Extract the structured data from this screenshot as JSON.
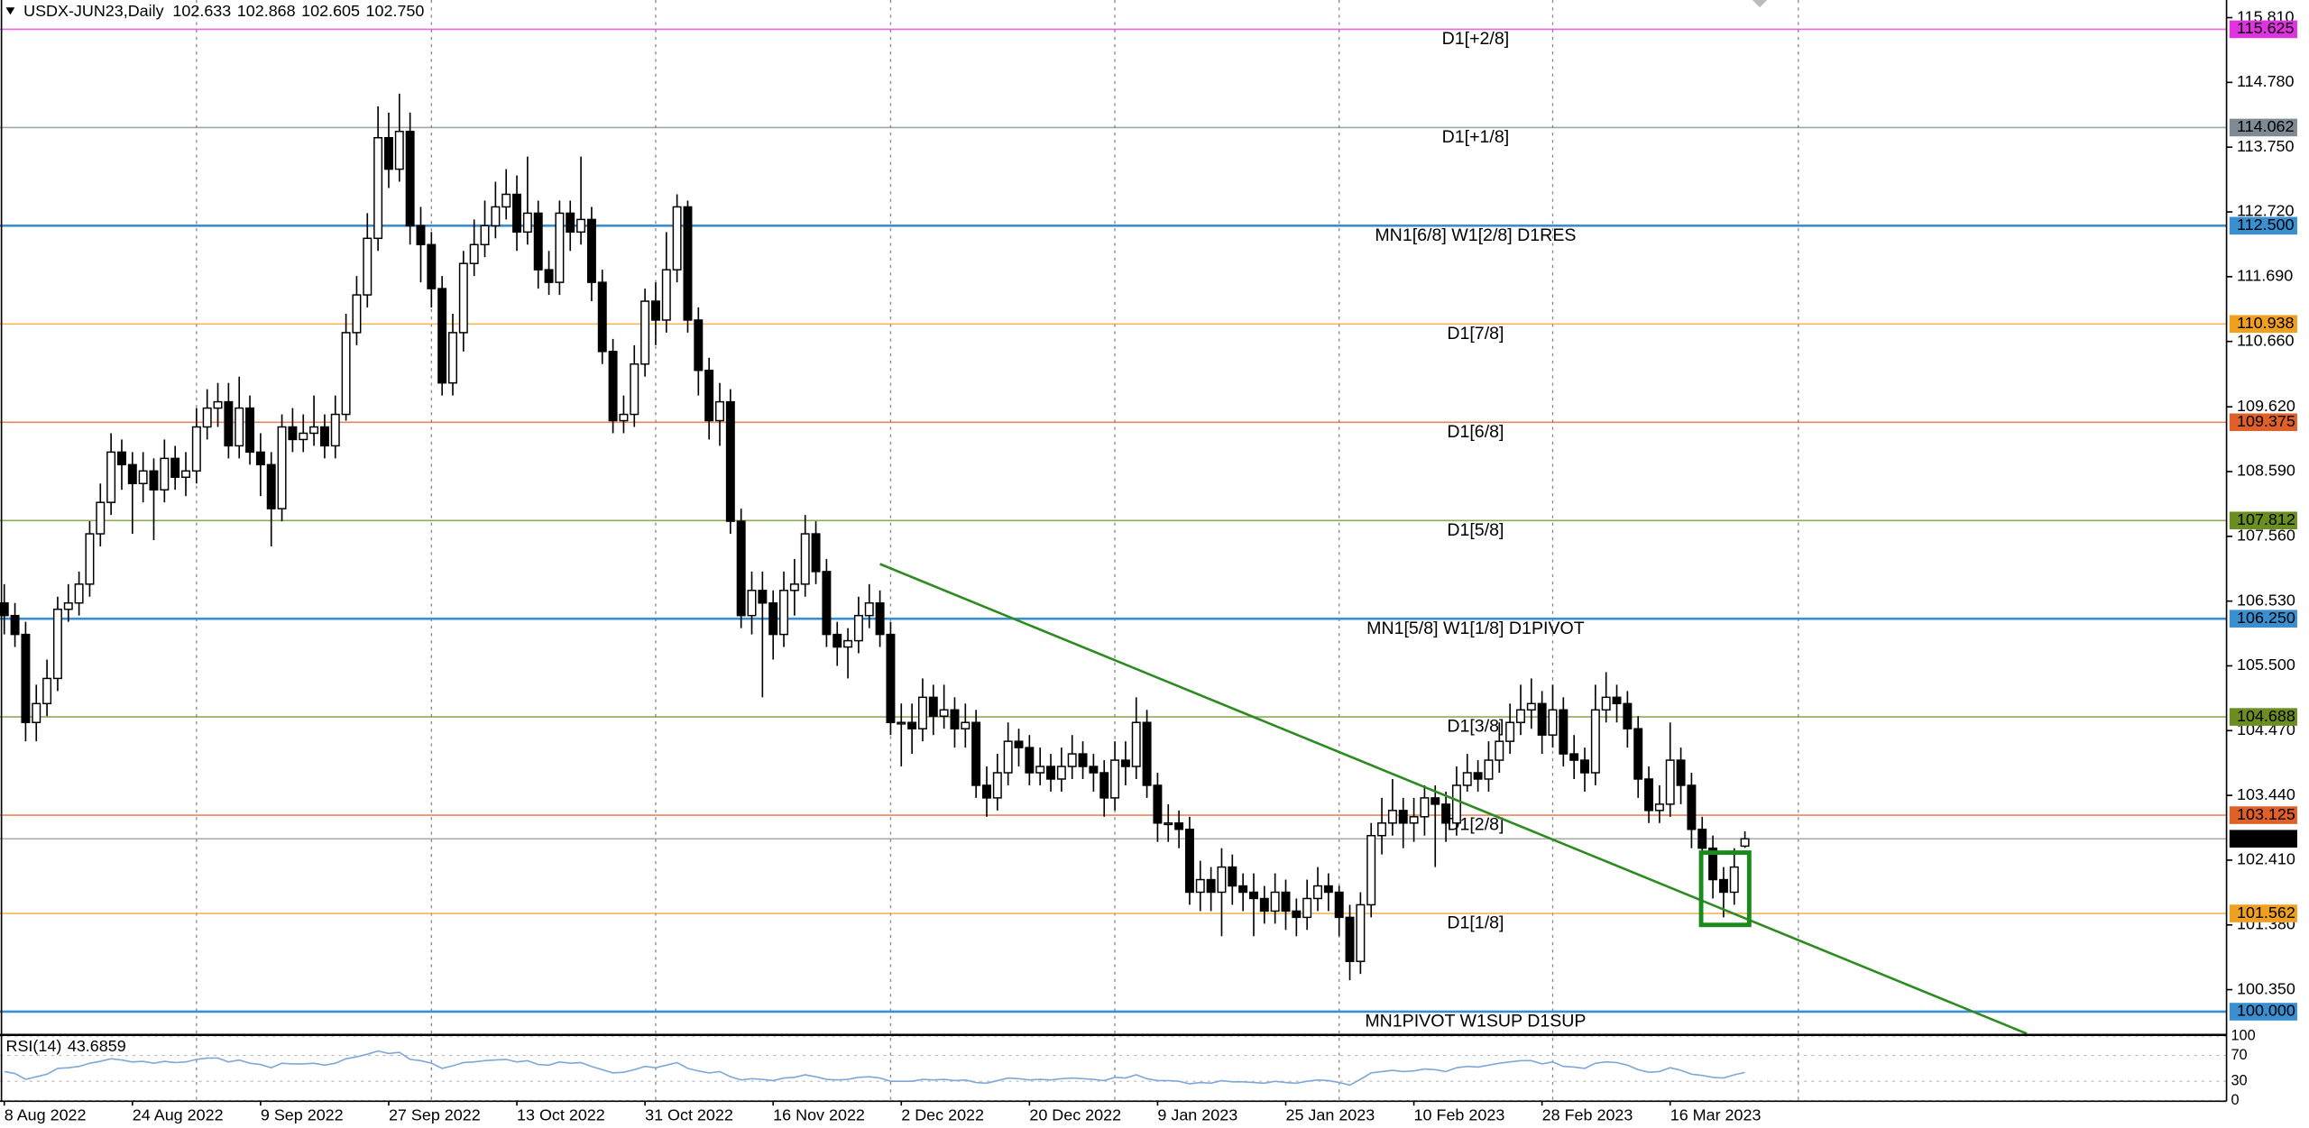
{
  "chart_data": [
    {
      "type": "candlestick",
      "symbol": "USDX-JUN23,Daily",
      "last_bar_labels": {
        "open": "102.633",
        "high": "102.868",
        "low": "102.605",
        "close": "102.750"
      },
      "bull_color": "#ffffff",
      "bear_color": "#000000",
      "open": [
        106.5,
        106.3,
        106.0,
        104.6,
        104.9,
        105.3,
        106.4,
        106.5,
        106.8,
        107.6,
        108.1,
        108.9,
        108.7,
        108.4,
        108.6,
        108.3,
        108.8,
        108.5,
        108.6,
        109.3,
        109.6,
        109.7,
        109.0,
        109.6,
        108.9,
        108.7,
        108.0,
        109.3,
        109.1,
        109.2,
        109.3,
        109.0,
        109.5,
        110.8,
        111.4,
        112.3,
        113.9,
        113.4,
        114.0,
        112.5,
        112.2,
        111.5,
        110.0,
        110.8,
        111.9,
        112.2,
        112.5,
        112.8,
        113.0,
        112.4,
        112.7,
        111.8,
        111.6,
        112.7,
        112.4,
        112.6,
        111.6,
        110.5,
        109.4,
        109.5,
        110.3,
        111.3,
        111.0,
        111.8,
        112.8,
        111.0,
        110.2,
        109.4,
        109.7,
        107.8,
        106.3,
        106.7,
        106.5,
        106.0,
        106.7,
        106.8,
        107.6,
        107.0,
        106.0,
        105.8,
        105.9,
        106.3,
        106.5,
        106.0,
        104.6,
        104.6,
        104.5,
        105.0,
        104.7,
        104.8,
        104.5,
        104.6,
        103.6,
        103.4,
        103.8,
        104.3,
        104.2,
        103.8,
        103.9,
        103.7,
        103.9,
        104.1,
        103.9,
        103.8,
        103.4,
        104.0,
        103.9,
        104.6,
        103.6,
        103.0,
        103.0,
        102.9,
        101.9,
        102.1,
        101.9,
        102.3,
        102.0,
        101.9,
        101.8,
        101.6,
        101.9,
        101.6,
        101.5,
        101.8,
        102.0,
        101.9,
        101.5,
        100.8,
        101.7,
        102.8,
        103.0,
        103.2,
        103.0,
        103.1,
        103.4,
        103.3,
        103.0,
        103.6,
        103.8,
        103.7,
        104.0,
        104.3,
        104.6,
        104.8,
        104.9,
        104.4,
        104.8,
        104.1,
        104.0,
        103.8,
        104.8,
        105.0,
        104.9,
        104.5,
        103.7,
        103.2,
        103.3,
        104.0,
        103.6,
        102.9,
        102.6,
        102.1,
        101.9,
        102.633
      ],
      "high": [
        106.8,
        106.5,
        106.2,
        105.2,
        105.6,
        106.6,
        106.8,
        107.0,
        107.8,
        108.4,
        109.2,
        109.1,
        108.9,
        108.9,
        108.8,
        109.1,
        109.0,
        108.9,
        109.6,
        109.9,
        110.0,
        110.0,
        110.1,
        109.8,
        109.2,
        108.9,
        109.5,
        109.6,
        109.5,
        109.8,
        109.5,
        109.8,
        111.1,
        111.7,
        112.7,
        114.4,
        114.3,
        114.6,
        114.3,
        112.8,
        112.4,
        111.7,
        111.1,
        112.1,
        112.6,
        112.9,
        113.2,
        113.4,
        113.3,
        113.6,
        112.9,
        112.1,
        112.9,
        112.9,
        113.6,
        112.8,
        111.8,
        110.7,
        109.8,
        110.6,
        111.5,
        111.6,
        112.4,
        113.0,
        112.9,
        111.2,
        110.4,
        110.0,
        109.9,
        108.0,
        107.0,
        107.0,
        106.7,
        107.0,
        107.2,
        107.9,
        107.8,
        107.2,
        106.2,
        106.1,
        106.6,
        106.8,
        106.7,
        106.2,
        104.9,
        104.9,
        105.3,
        105.2,
        105.2,
        105.0,
        104.9,
        104.8,
        103.9,
        104.1,
        104.6,
        104.5,
        104.4,
        104.2,
        104.1,
        104.2,
        104.4,
        104.3,
        104.1,
        104.0,
        104.3,
        104.3,
        105.0,
        104.8,
        103.8,
        103.3,
        103.2,
        103.1,
        102.4,
        102.3,
        102.6,
        102.5,
        102.2,
        102.2,
        102.0,
        102.2,
        102.1,
        101.8,
        102.1,
        102.3,
        102.2,
        102.0,
        101.7,
        101.9,
        103.0,
        103.4,
        103.7,
        103.4,
        103.4,
        103.6,
        103.6,
        103.5,
        103.9,
        104.1,
        104.0,
        104.3,
        104.6,
        104.9,
        105.2,
        105.3,
        105.1,
        105.2,
        105.0,
        104.4,
        104.2,
        105.2,
        105.4,
        105.2,
        105.1,
        104.7,
        103.9,
        103.6,
        104.6,
        104.2,
        103.8,
        103.1,
        102.8,
        102.3,
        102.6,
        102.868
      ],
      "low": [
        106.0,
        105.8,
        104.3,
        104.3,
        104.7,
        105.1,
        106.2,
        106.3,
        106.6,
        107.4,
        107.9,
        108.3,
        107.6,
        108.1,
        107.5,
        108.1,
        108.3,
        108.2,
        108.4,
        109.1,
        109.3,
        108.8,
        108.8,
        108.7,
        108.2,
        107.4,
        107.8,
        108.9,
        108.9,
        109.0,
        108.8,
        108.8,
        109.4,
        110.6,
        111.2,
        112.1,
        113.1,
        113.2,
        112.2,
        111.6,
        111.2,
        109.8,
        109.8,
        110.5,
        111.7,
        112.0,
        112.3,
        112.6,
        112.1,
        112.2,
        111.5,
        111.4,
        111.4,
        112.1,
        112.2,
        111.3,
        110.3,
        109.2,
        109.2,
        109.3,
        110.1,
        110.6,
        110.8,
        111.6,
        110.8,
        109.8,
        109.1,
        109.0,
        107.6,
        106.1,
        106.0,
        105.0,
        105.6,
        105.8,
        106.3,
        106.6,
        106.8,
        105.8,
        105.5,
        105.3,
        105.7,
        106.1,
        105.8,
        104.4,
        103.9,
        104.1,
        104.3,
        104.4,
        104.5,
        104.2,
        104.2,
        103.4,
        103.1,
        103.2,
        103.6,
        103.9,
        103.6,
        103.6,
        103.5,
        103.5,
        103.7,
        103.7,
        103.5,
        103.1,
        103.2,
        103.6,
        103.7,
        103.4,
        102.7,
        102.7,
        102.6,
        101.7,
        101.6,
        101.6,
        101.2,
        101.7,
        101.6,
        101.2,
        101.4,
        101.4,
        101.3,
        101.2,
        101.3,
        101.6,
        101.6,
        101.2,
        100.5,
        100.6,
        101.5,
        102.5,
        102.8,
        102.6,
        102.7,
        102.8,
        102.3,
        102.7,
        102.8,
        103.5,
        103.5,
        103.5,
        103.8,
        104.1,
        104.4,
        104.5,
        104.1,
        104.2,
        103.9,
        103.7,
        103.5,
        103.6,
        104.6,
        104.6,
        104.2,
        103.4,
        103.0,
        103.0,
        103.1,
        103.3,
        102.6,
        102.4,
        101.8,
        101.5,
        101.7,
        102.605
      ],
      "close": [
        106.3,
        106.0,
        104.6,
        104.9,
        105.3,
        106.4,
        106.5,
        106.8,
        107.6,
        108.1,
        108.9,
        108.7,
        108.4,
        108.6,
        108.3,
        108.8,
        108.5,
        108.6,
        109.3,
        109.6,
        109.7,
        109.0,
        109.6,
        108.9,
        108.7,
        108.0,
        109.3,
        109.1,
        109.2,
        109.3,
        109.0,
        109.5,
        110.8,
        111.4,
        112.3,
        113.9,
        113.4,
        114.0,
        112.5,
        112.2,
        111.5,
        110.0,
        110.8,
        111.9,
        112.2,
        112.5,
        112.8,
        113.0,
        112.4,
        112.7,
        111.8,
        111.6,
        112.7,
        112.4,
        112.6,
        111.6,
        110.5,
        109.4,
        109.5,
        110.3,
        111.3,
        111.0,
        111.8,
        112.8,
        111.0,
        110.2,
        109.4,
        109.7,
        107.8,
        106.3,
        106.7,
        106.5,
        106.0,
        106.7,
        106.8,
        107.6,
        107.0,
        106.0,
        105.8,
        105.9,
        106.3,
        106.5,
        106.0,
        104.6,
        104.6,
        104.5,
        105.0,
        104.7,
        104.8,
        104.5,
        104.6,
        103.6,
        103.4,
        103.8,
        104.3,
        104.2,
        103.8,
        103.9,
        103.7,
        103.9,
        104.1,
        103.9,
        103.8,
        103.4,
        104.0,
        103.9,
        104.6,
        103.6,
        103.0,
        103.0,
        102.9,
        101.9,
        102.1,
        101.9,
        102.3,
        102.0,
        101.9,
        101.8,
        101.6,
        101.9,
        101.6,
        101.5,
        101.8,
        102.0,
        101.9,
        101.5,
        100.8,
        101.7,
        102.8,
        103.0,
        103.2,
        103.0,
        103.1,
        103.4,
        103.3,
        103.0,
        103.6,
        103.8,
        103.7,
        104.0,
        104.3,
        104.6,
        104.8,
        104.9,
        104.4,
        104.8,
        104.1,
        104.0,
        103.8,
        104.8,
        105.0,
        104.9,
        104.5,
        103.7,
        103.2,
        103.3,
        104.0,
        103.6,
        102.9,
        102.6,
        102.1,
        101.9,
        102.3,
        102.75
      ],
      "xlim": [
        -0.4,
        208.1
      ],
      "ylim": [
        99.63,
        116.09
      ],
      "xticks": [
        {
          "value": 0,
          "label": "8 Aug 2022"
        },
        {
          "value": 12,
          "label": "24 Aug 2022"
        },
        {
          "value": 24,
          "label": "9 Sep 2022"
        },
        {
          "value": 36,
          "label": "27 Sep 2022"
        },
        {
          "value": 48,
          "label": "13 Oct 2022"
        },
        {
          "value": 60,
          "label": "31 Oct 2022"
        },
        {
          "value": 72,
          "label": "16 Nov 2022"
        },
        {
          "value": 84,
          "label": "2 Dec 2022"
        },
        {
          "value": 96,
          "label": "20 Dec 2022"
        },
        {
          "value": 108,
          "label": "9 Jan 2023"
        },
        {
          "value": 120,
          "label": "25 Jan 2023"
        },
        {
          "value": 132,
          "label": "10 Feb 2023"
        },
        {
          "value": 144,
          "label": "28 Feb 2023"
        },
        {
          "value": 156,
          "label": "16 Mar 2023"
        }
      ],
      "xgrid": [
        18,
        40,
        61,
        83,
        104,
        125,
        145,
        168
      ],
      "yticks": [
        {
          "value": 115.81,
          "label": "115.810"
        },
        {
          "value": 114.78,
          "label": "114.780"
        },
        {
          "value": 113.75,
          "label": "113.750"
        },
        {
          "value": 112.72,
          "label": "112.720"
        },
        {
          "value": 111.69,
          "label": "111.690"
        },
        {
          "value": 110.66,
          "label": "110.660"
        },
        {
          "value": 109.62,
          "label": "109.620"
        },
        {
          "value": 108.59,
          "label": "108.590"
        },
        {
          "value": 107.56,
          "label": "107.560"
        },
        {
          "value": 106.53,
          "label": "106.530"
        },
        {
          "value": 105.5,
          "label": "105.500"
        },
        {
          "value": 104.47,
          "label": "104.470"
        },
        {
          "value": 103.44,
          "label": "103.440"
        },
        {
          "value": 102.41,
          "label": "102.410"
        },
        {
          "value": 101.38,
          "label": "101.380"
        },
        {
          "value": 100.35,
          "label": "100.350"
        }
      ],
      "levels": [
        {
          "label": "D1[+2/8]",
          "value": 115.625,
          "tag": "115.625",
          "color": "#e033e0",
          "width": 1
        },
        {
          "label": "D1[+1/8]",
          "value": 114.062,
          "tag": "114.062",
          "color": "#7f8a94",
          "width": 1
        },
        {
          "label": "MN1[6/8] W1[2/8] D1RES",
          "value": 112.5,
          "tag": "112.500",
          "color": "#3a8fd0",
          "width": 1.6
        },
        {
          "label": "D1[7/8]",
          "value": 110.938,
          "tag": "110.938",
          "color": "#f0a020",
          "width": 1
        },
        {
          "label": "D1[6/8]",
          "value": 109.375,
          "tag": "109.375",
          "color": "#e0602a",
          "width": 1
        },
        {
          "label": "D1[5/8]",
          "value": 107.812,
          "tag": "107.812",
          "color": "#6b8e23",
          "width": 1
        },
        {
          "label": "MN1[5/8] W1[1/8] D1PIVOT",
          "value": 106.25,
          "tag": "106.250",
          "color": "#3a8fd0",
          "width": 1.6
        },
        {
          "label": "D1[3/8]",
          "value": 104.688,
          "tag": "104.688",
          "color": "#6b8e23",
          "width": 1
        },
        {
          "label": "D1[2/8]",
          "value": 103.125,
          "tag": "103.125",
          "color": "#e0602a",
          "width": 1
        },
        {
          "label": "D1[1/8]",
          "value": 101.562,
          "tag": "101.562",
          "color": "#f0a020",
          "width": 1
        },
        {
          "label": "MN1PIVOT W1SUP D1SUP",
          "value": 100,
          "tag": "100.000",
          "color": "#3a8fd0",
          "width": 1.6
        }
      ],
      "trendline": {
        "x": [
          82,
          189.4
        ],
        "y": [
          107.12,
          99.65
        ],
        "color": "#2e8b22"
      },
      "highlight_box": {
        "x": [
          158.9,
          163.4
        ],
        "y": [
          102.53,
          101.38
        ],
        "color": "#1a8a1a"
      }
    },
    {
      "type": "line",
      "title": "RSI(14)",
      "color": "#7fa8d8",
      "ylim": [
        -1,
        102
      ],
      "yticks": [
        100,
        70,
        30,
        0
      ],
      "values": [
        45,
        42,
        33,
        37,
        41,
        50,
        51,
        53,
        58,
        61,
        65,
        63,
        60,
        61,
        58,
        61,
        59,
        60,
        64,
        66,
        66,
        60,
        63,
        58,
        56,
        51,
        58,
        57,
        57,
        58,
        55,
        58,
        65,
        68,
        72,
        77,
        73,
        75,
        64,
        62,
        58,
        50,
        54,
        59,
        60,
        62,
        63,
        64,
        60,
        62,
        56,
        55,
        60,
        58,
        59,
        53,
        48,
        43,
        44,
        48,
        53,
        51,
        55,
        59,
        50,
        46,
        43,
        45,
        37,
        32,
        34,
        33,
        31,
        35,
        36,
        40,
        37,
        33,
        32,
        33,
        36,
        37,
        35,
        30,
        30,
        30,
        33,
        32,
        33,
        31,
        32,
        28,
        27,
        31,
        35,
        34,
        32,
        33,
        32,
        34,
        35,
        34,
        33,
        31,
        36,
        35,
        40,
        34,
        31,
        31,
        30,
        26,
        28,
        27,
        31,
        29,
        29,
        28,
        27,
        30,
        28,
        27,
        30,
        32,
        31,
        28,
        24,
        33,
        43,
        45,
        47,
        45,
        46,
        49,
        48,
        45,
        51,
        53,
        52,
        55,
        58,
        60,
        62,
        62,
        57,
        60,
        53,
        52,
        50,
        58,
        60,
        59,
        55,
        48,
        44,
        45,
        51,
        47,
        41,
        39,
        36,
        35,
        40,
        43.6859
      ]
    }
  ]
}
